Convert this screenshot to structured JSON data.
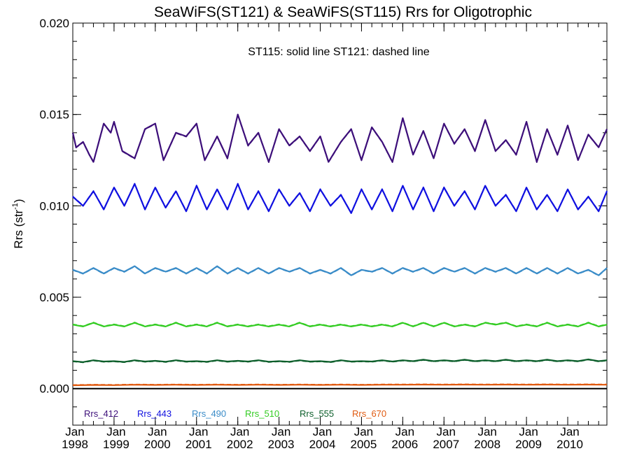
{
  "chart_data": {
    "type": "line",
    "title": "SeaWiFS(ST121) & SeaWiFS(ST115)  Rrs for Oligotrophic",
    "annotation": "ST115: solid line   ST121: dashed line",
    "ylabel": "Rrs (str",
    "ylabel_sup": "-1",
    "ylabel_close": ")",
    "ylim": [
      -0.002,
      0.02
    ],
    "yticks": [
      "0.000",
      "0.005",
      "0.010",
      "0.015",
      "0.020"
    ],
    "ytick_values": [
      0.0,
      0.005,
      0.01,
      0.015,
      0.02
    ],
    "xlim": [
      1998.0,
      2010.95
    ],
    "xticks": [
      {
        "month": "Jan",
        "year": "1998",
        "x": 1998
      },
      {
        "month": "Jan",
        "year": "1999",
        "x": 1999
      },
      {
        "month": "Jan",
        "year": "2000",
        "x": 2000
      },
      {
        "month": "Jan",
        "year": "2001",
        "x": 2001
      },
      {
        "month": "Jan",
        "year": "2002",
        "x": 2002
      },
      {
        "month": "Jan",
        "year": "2003",
        "x": 2003
      },
      {
        "month": "Jan",
        "year": "2004",
        "x": 2004
      },
      {
        "month": "Jan",
        "year": "2005",
        "x": 2005
      },
      {
        "month": "Jan",
        "year": "2006",
        "x": 2006
      },
      {
        "month": "Jan",
        "year": "2007",
        "x": 2007
      },
      {
        "month": "Jan",
        "year": "2008",
        "x": 2008
      },
      {
        "month": "Jan",
        "year": "2009",
        "x": 2009
      },
      {
        "month": "Jan",
        "year": "2010",
        "x": 2010
      }
    ],
    "zero_line": 0.0,
    "legend_position": "bottom-left",
    "series": [
      {
        "name": "Rrs_412",
        "color": "#3d0f7a",
        "lineStyle": "solid",
        "x": [
          1998.0,
          1998.08,
          1998.25,
          1998.4,
          1998.5,
          1998.75,
          1998.92,
          1999.0,
          1999.2,
          1999.5,
          1999.75,
          2000.0,
          2000.2,
          2000.5,
          2000.75,
          2001.0,
          2001.2,
          2001.5,
          2001.75,
          2002.0,
          2002.25,
          2002.5,
          2002.75,
          2003.0,
          2003.25,
          2003.5,
          2003.75,
          2004.0,
          2004.2,
          2004.5,
          2004.75,
          2005.0,
          2005.25,
          2005.5,
          2005.75,
          2006.0,
          2006.25,
          2006.5,
          2006.75,
          2007.0,
          2007.25,
          2007.5,
          2007.75,
          2008.0,
          2008.25,
          2008.5,
          2008.75,
          2009.0,
          2009.25,
          2009.5,
          2009.75,
          2010.0,
          2010.25,
          2010.5,
          2010.75,
          2010.95
        ],
        "y": [
          0.014,
          0.0132,
          0.0135,
          0.0128,
          0.0124,
          0.0145,
          0.014,
          0.0146,
          0.013,
          0.0126,
          0.0142,
          0.0145,
          0.0125,
          0.014,
          0.0138,
          0.0145,
          0.0125,
          0.0138,
          0.0126,
          0.015,
          0.0133,
          0.014,
          0.0124,
          0.0142,
          0.0133,
          0.0138,
          0.013,
          0.0138,
          0.0124,
          0.0135,
          0.0142,
          0.0125,
          0.0143,
          0.0135,
          0.0124,
          0.0148,
          0.0128,
          0.0141,
          0.0126,
          0.0145,
          0.0134,
          0.0142,
          0.013,
          0.0147,
          0.013,
          0.0136,
          0.0128,
          0.0146,
          0.0124,
          0.0142,
          0.0128,
          0.0144,
          0.0125,
          0.0139,
          0.0132,
          0.0142
        ]
      },
      {
        "name": "Rrs_443",
        "color": "#1010e0",
        "lineStyle": "solid",
        "x": [
          1998.0,
          1998.25,
          1998.5,
          1998.75,
          1999.0,
          1999.25,
          1999.5,
          1999.75,
          2000.0,
          2000.25,
          2000.5,
          2000.75,
          2001.0,
          2001.25,
          2001.5,
          2001.75,
          2002.0,
          2002.25,
          2002.5,
          2002.75,
          2003.0,
          2003.25,
          2003.5,
          2003.75,
          2004.0,
          2004.25,
          2004.5,
          2004.75,
          2005.0,
          2005.25,
          2005.5,
          2005.75,
          2006.0,
          2006.25,
          2006.5,
          2006.75,
          2007.0,
          2007.25,
          2007.5,
          2007.75,
          2008.0,
          2008.25,
          2008.5,
          2008.75,
          2009.0,
          2009.25,
          2009.5,
          2009.75,
          2010.0,
          2010.25,
          2010.5,
          2010.75,
          2010.95
        ],
        "y": [
          0.0105,
          0.01,
          0.0108,
          0.0098,
          0.011,
          0.01,
          0.0112,
          0.0098,
          0.011,
          0.0099,
          0.0108,
          0.0097,
          0.0111,
          0.0098,
          0.0109,
          0.0098,
          0.0112,
          0.0098,
          0.0108,
          0.0097,
          0.0109,
          0.01,
          0.0107,
          0.0097,
          0.0109,
          0.01,
          0.0106,
          0.0096,
          0.0109,
          0.0098,
          0.0109,
          0.0097,
          0.0111,
          0.0098,
          0.011,
          0.0097,
          0.011,
          0.01,
          0.0108,
          0.0098,
          0.0111,
          0.01,
          0.0106,
          0.0097,
          0.011,
          0.0098,
          0.0106,
          0.0097,
          0.0109,
          0.0098,
          0.0105,
          0.0097,
          0.0108
        ]
      },
      {
        "name": "Rrs_490",
        "color": "#3a8cc8",
        "lineStyle": "solid",
        "x": [
          1998.0,
          1998.25,
          1998.5,
          1998.75,
          1999.0,
          1999.25,
          1999.5,
          1999.75,
          2000.0,
          2000.25,
          2000.5,
          2000.75,
          2001.0,
          2001.25,
          2001.5,
          2001.75,
          2002.0,
          2002.25,
          2002.5,
          2002.75,
          2003.0,
          2003.25,
          2003.5,
          2003.75,
          2004.0,
          2004.25,
          2004.5,
          2004.75,
          2005.0,
          2005.25,
          2005.5,
          2005.75,
          2006.0,
          2006.25,
          2006.5,
          2006.75,
          2007.0,
          2007.25,
          2007.5,
          2007.75,
          2008.0,
          2008.25,
          2008.5,
          2008.75,
          2009.0,
          2009.25,
          2009.5,
          2009.75,
          2010.0,
          2010.25,
          2010.5,
          2010.75,
          2010.95
        ],
        "y": [
          0.0065,
          0.0063,
          0.0066,
          0.0063,
          0.0066,
          0.0064,
          0.0067,
          0.0063,
          0.0066,
          0.0064,
          0.0066,
          0.0063,
          0.0066,
          0.0063,
          0.0067,
          0.0063,
          0.0066,
          0.0063,
          0.0066,
          0.0063,
          0.0066,
          0.0064,
          0.0066,
          0.0063,
          0.0065,
          0.0063,
          0.0066,
          0.0062,
          0.0065,
          0.0064,
          0.0066,
          0.0063,
          0.0066,
          0.0064,
          0.0066,
          0.0063,
          0.0066,
          0.0064,
          0.0066,
          0.0063,
          0.0066,
          0.0064,
          0.0066,
          0.0063,
          0.0066,
          0.0063,
          0.0066,
          0.0063,
          0.0066,
          0.0063,
          0.0065,
          0.0062,
          0.0066
        ]
      },
      {
        "name": "Rrs_510",
        "color": "#33cc22",
        "lineStyle": "solid",
        "x": [
          1998.0,
          1998.25,
          1998.5,
          1998.75,
          1999.0,
          1999.25,
          1999.5,
          1999.75,
          2000.0,
          2000.25,
          2000.5,
          2000.75,
          2001.0,
          2001.25,
          2001.5,
          2001.75,
          2002.0,
          2002.25,
          2002.5,
          2002.75,
          2003.0,
          2003.25,
          2003.5,
          2003.75,
          2004.0,
          2004.25,
          2004.5,
          2004.75,
          2005.0,
          2005.25,
          2005.5,
          2005.75,
          2006.0,
          2006.25,
          2006.5,
          2006.75,
          2007.0,
          2007.25,
          2007.5,
          2007.75,
          2008.0,
          2008.25,
          2008.5,
          2008.75,
          2009.0,
          2009.25,
          2009.5,
          2009.75,
          2010.0,
          2010.25,
          2010.5,
          2010.75,
          2010.95
        ],
        "y": [
          0.0035,
          0.0034,
          0.0036,
          0.0034,
          0.0035,
          0.0034,
          0.0036,
          0.0034,
          0.0035,
          0.0034,
          0.0036,
          0.0034,
          0.0035,
          0.0034,
          0.0036,
          0.0034,
          0.0035,
          0.0034,
          0.0035,
          0.0034,
          0.0035,
          0.0034,
          0.0036,
          0.0034,
          0.0035,
          0.0034,
          0.0035,
          0.0034,
          0.0035,
          0.0034,
          0.0035,
          0.0034,
          0.0036,
          0.0034,
          0.0036,
          0.0034,
          0.0036,
          0.0034,
          0.0035,
          0.0034,
          0.0036,
          0.0035,
          0.0036,
          0.0034,
          0.0035,
          0.0034,
          0.0036,
          0.0034,
          0.0035,
          0.0034,
          0.0036,
          0.0034,
          0.0035
        ]
      },
      {
        "name": "Rrs_555",
        "color": "#0b5e2a",
        "lineStyle": "solid",
        "x": [
          1998.0,
          1998.25,
          1998.5,
          1998.75,
          1999.0,
          1999.25,
          1999.5,
          1999.75,
          2000.0,
          2000.25,
          2000.5,
          2000.75,
          2001.0,
          2001.25,
          2001.5,
          2001.75,
          2002.0,
          2002.25,
          2002.5,
          2002.75,
          2003.0,
          2003.25,
          2003.5,
          2003.75,
          2004.0,
          2004.25,
          2004.5,
          2004.75,
          2005.0,
          2005.25,
          2005.5,
          2005.75,
          2006.0,
          2006.25,
          2006.5,
          2006.75,
          2007.0,
          2007.25,
          2007.5,
          2007.75,
          2008.0,
          2008.25,
          2008.5,
          2008.75,
          2009.0,
          2009.25,
          2009.5,
          2009.75,
          2010.0,
          2010.25,
          2010.5,
          2010.75,
          2010.95
        ],
        "y": [
          0.0015,
          0.00145,
          0.00155,
          0.00148,
          0.0015,
          0.00146,
          0.00155,
          0.00148,
          0.00152,
          0.00147,
          0.00155,
          0.00148,
          0.0015,
          0.00147,
          0.00155,
          0.00148,
          0.00152,
          0.00148,
          0.00155,
          0.00147,
          0.0015,
          0.00147,
          0.00155,
          0.00148,
          0.0015,
          0.00146,
          0.00155,
          0.00148,
          0.0015,
          0.00148,
          0.00155,
          0.00148,
          0.00155,
          0.0015,
          0.00158,
          0.0015,
          0.00155,
          0.0015,
          0.00158,
          0.0015,
          0.00155,
          0.0015,
          0.00158,
          0.0015,
          0.00155,
          0.0015,
          0.00158,
          0.0015,
          0.00155,
          0.0015,
          0.0016,
          0.0015,
          0.00155
        ]
      },
      {
        "name": "Rrs_670",
        "color": "#e05a10",
        "lineStyle": "solid",
        "x": [
          1998.0,
          1998.5,
          1999.0,
          1999.5,
          2000.0,
          2000.5,
          2001.0,
          2001.5,
          2002.0,
          2002.5,
          2003.0,
          2003.5,
          2004.0,
          2004.5,
          2005.0,
          2005.5,
          2006.0,
          2006.5,
          2007.0,
          2007.5,
          2008.0,
          2008.5,
          2009.0,
          2009.5,
          2010.0,
          2010.5,
          2010.95
        ],
        "y": [
          0.00018,
          0.0002,
          0.00019,
          0.00021,
          0.0002,
          0.00021,
          0.0002,
          0.00021,
          0.0002,
          0.00021,
          0.0002,
          0.00021,
          0.0002,
          0.00021,
          0.0002,
          0.00021,
          0.00021,
          0.00022,
          0.00021,
          0.00022,
          0.00021,
          0.00022,
          0.00021,
          0.00022,
          0.00021,
          0.00022,
          0.00021
        ]
      }
    ]
  }
}
